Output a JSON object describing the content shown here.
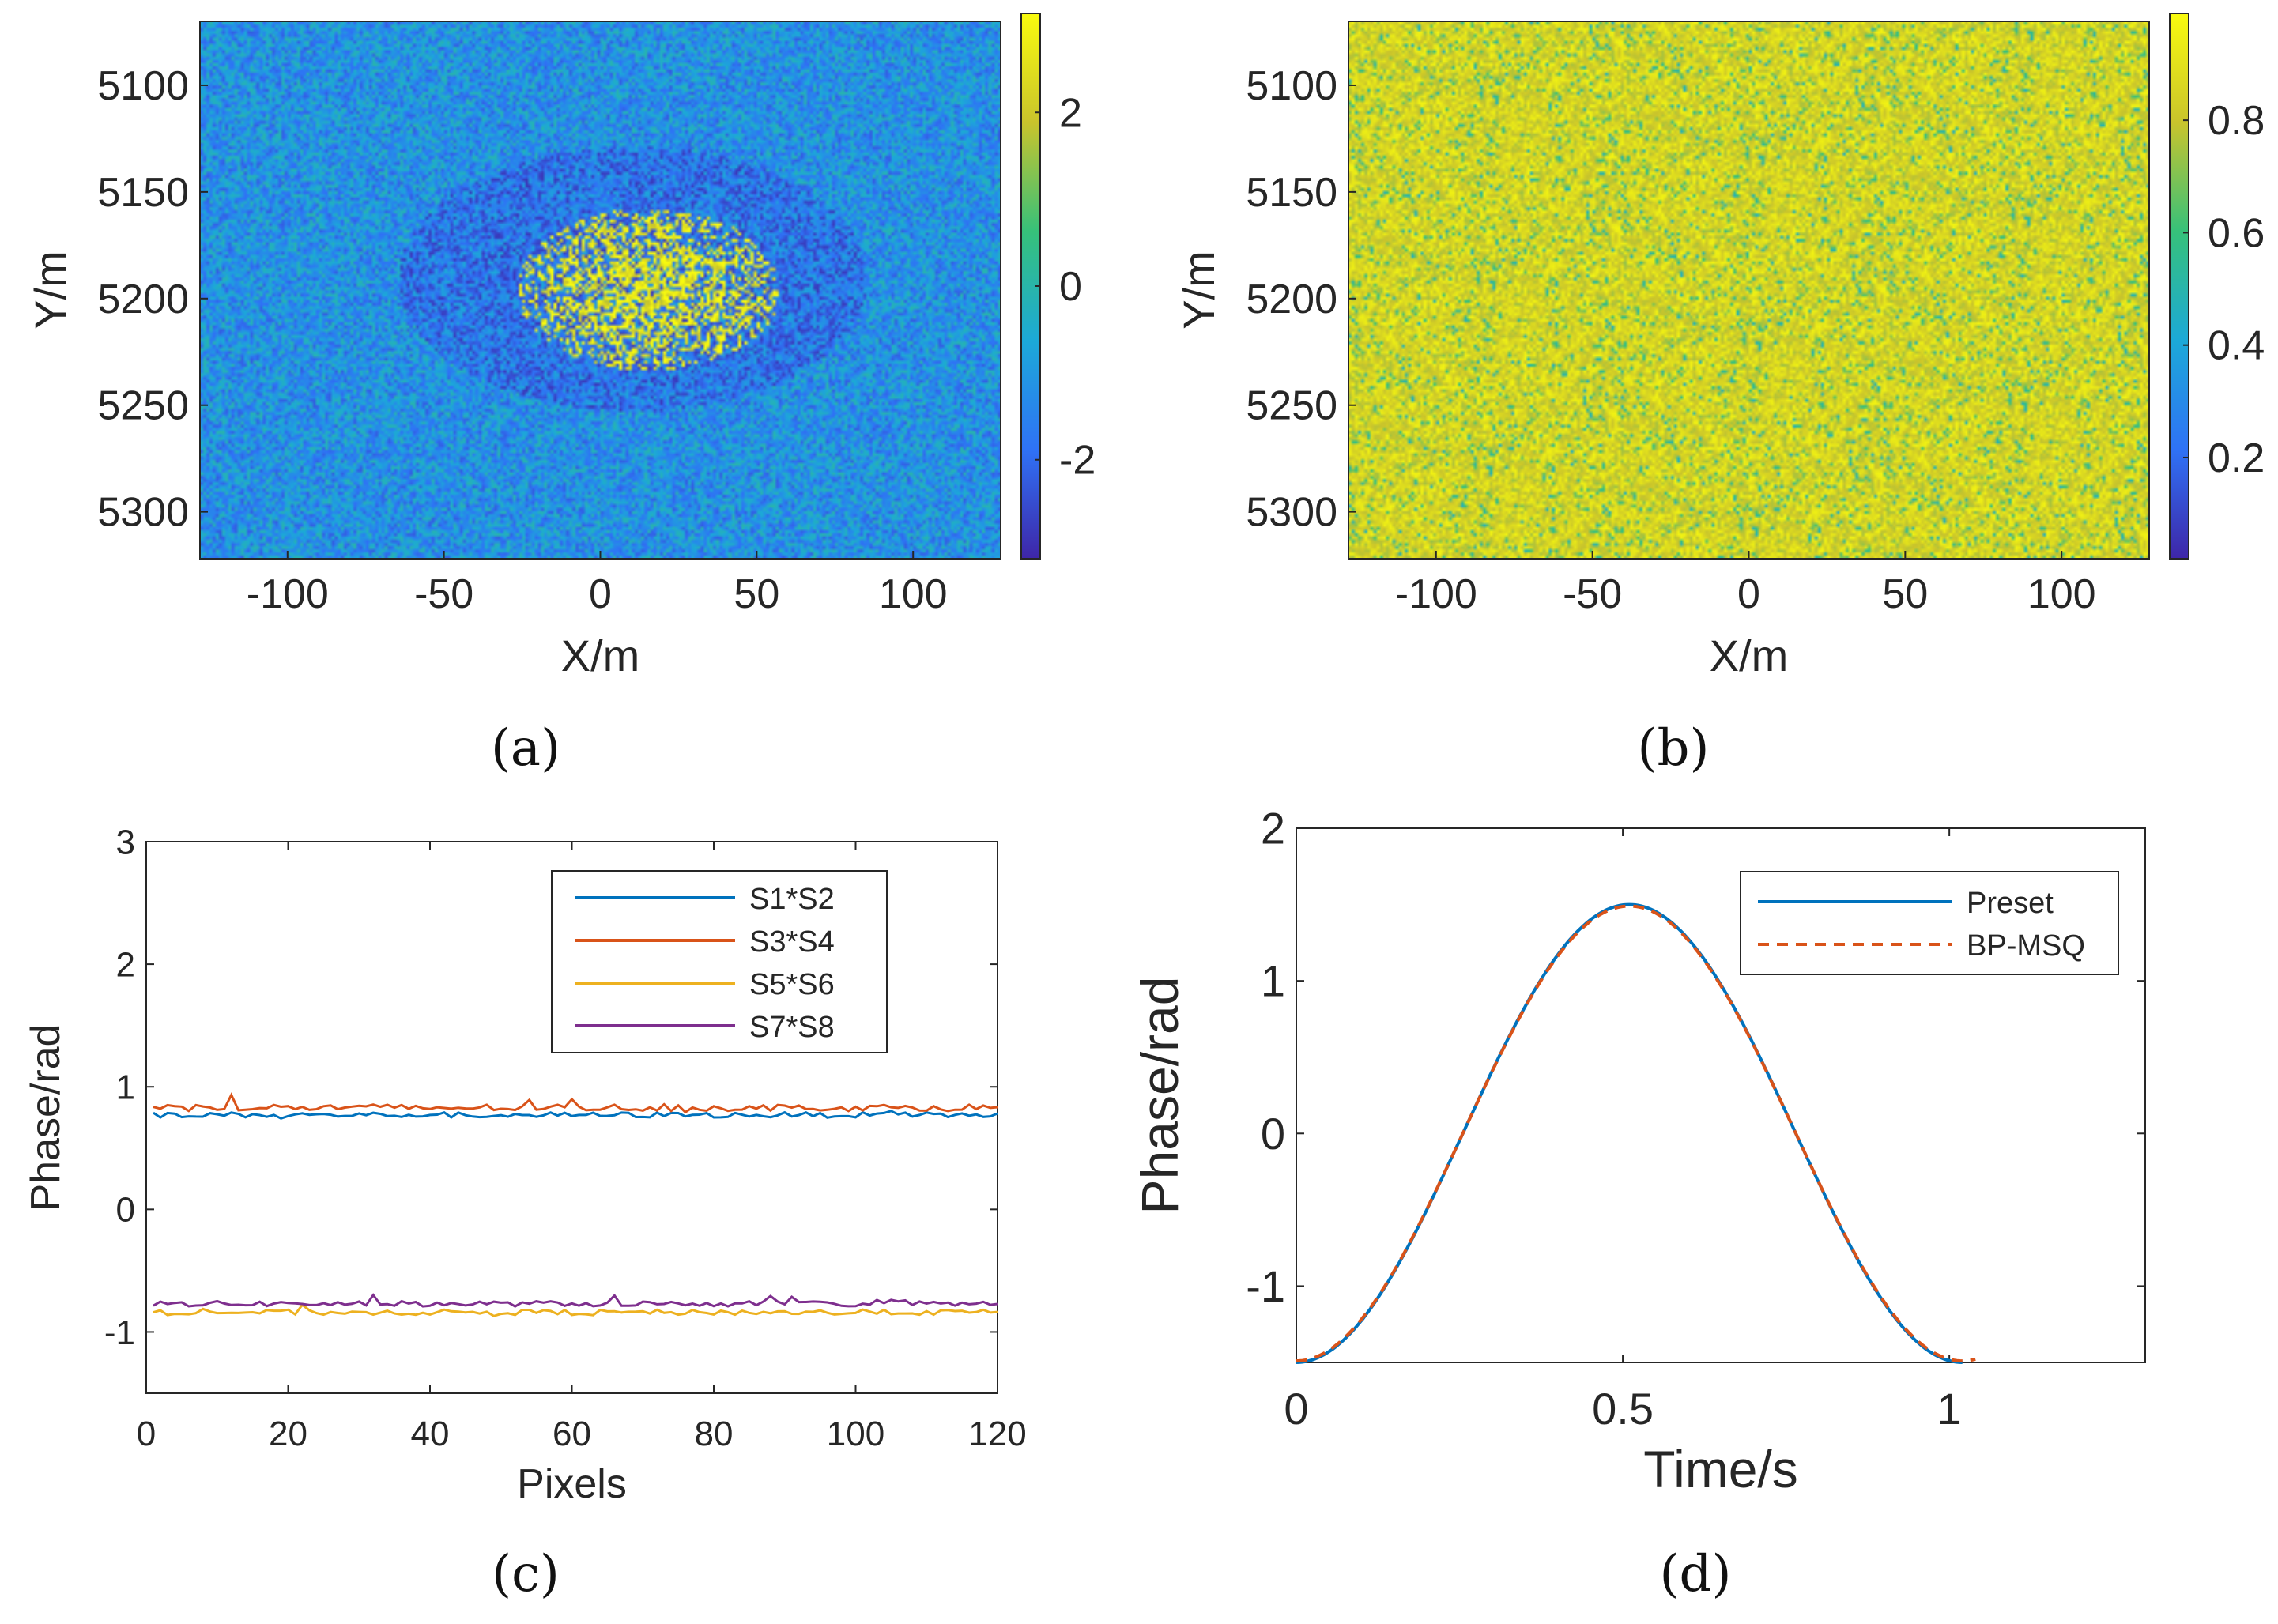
{
  "figure": {
    "captions": [
      "(a)",
      "(b)",
      "(c)",
      "(d)"
    ]
  },
  "chart_data": [
    {
      "id": "a",
      "type": "heatmap",
      "title": "",
      "xlabel": "X/m",
      "ylabel": "Y/m",
      "xlim": [
        -128,
        128
      ],
      "ylim": [
        5070,
        5322
      ],
      "y_reversed": true,
      "xticks": [
        -100,
        -50,
        0,
        50,
        100
      ],
      "yticks": [
        5100,
        5150,
        5200,
        5250,
        5300
      ],
      "colorbar": {
        "ticks": [
          2,
          0,
          -2
        ],
        "range": [
          -3.14,
          3.14
        ],
        "colors": [
          "#3e26a8",
          "#2f72f6",
          "#1ca9d8",
          "#36c17a",
          "#c9c42c",
          "#f9fb0e"
        ]
      },
      "description_values": {
        "background_phase": -1.2,
        "center_phase": 3.0
      }
    },
    {
      "id": "b",
      "type": "heatmap",
      "title": "",
      "xlabel": "X/m",
      "ylabel": "Y/m",
      "xlim": [
        -128,
        128
      ],
      "ylim": [
        5070,
        5322
      ],
      "y_reversed": true,
      "xticks": [
        -100,
        -50,
        0,
        50,
        100
      ],
      "yticks": [
        5100,
        5150,
        5200,
        5250,
        5300
      ],
      "colorbar": {
        "ticks": [
          0.8,
          0.6,
          0.4,
          0.2
        ],
        "range": [
          0.02,
          0.99
        ],
        "colors": [
          "#3e26a8",
          "#2f72f6",
          "#1ca9d8",
          "#36c17a",
          "#c9c42c",
          "#f9fb0e"
        ]
      },
      "description_values": {
        "typical_coherence": 0.9
      }
    },
    {
      "id": "c",
      "type": "line",
      "title": "",
      "xlabel": "Pixels",
      "ylabel": "Phase/rad",
      "xlim": [
        0,
        120
      ],
      "ylim": [
        -1.5,
        3
      ],
      "xticks": [
        0,
        20,
        40,
        60,
        80,
        100,
        120
      ],
      "yticks": [
        3,
        2,
        1,
        0,
        -1
      ],
      "legend": "top-right",
      "series": [
        {
          "name": "S1*S2",
          "color": "#0072bd",
          "mean": 0.77,
          "noise": 0.022
        },
        {
          "name": "S3*S4",
          "color": "#d95319",
          "mean": 0.83,
          "noise": 0.028
        },
        {
          "name": "S5*S6",
          "color": "#edb120",
          "mean": -0.84,
          "noise": 0.022
        },
        {
          "name": "S7*S8",
          "color": "#7e2f8e",
          "mean": -0.77,
          "noise": 0.022
        }
      ]
    },
    {
      "id": "d",
      "type": "line",
      "title": "",
      "xlabel": "Time/s",
      "ylabel": "Phase/rad",
      "xlim": [
        0,
        1.3
      ],
      "ylim": [
        -1.5,
        2
      ],
      "xticks": [
        0,
        0.5,
        1
      ],
      "xtick_labels": [
        "0",
        "0.5",
        "1"
      ],
      "yticks": [
        2,
        1,
        0,
        -1
      ],
      "legend": "top-right",
      "series": [
        {
          "name": "Preset",
          "color": "#0072bd",
          "style": "solid",
          "x_range": [
            0,
            1.02
          ],
          "amplitude": 1.5,
          "period": 1.02
        },
        {
          "name": "BP-MSQ",
          "color": "#d95319",
          "style": "dashed",
          "x_range": [
            0,
            1.04
          ],
          "amplitude": 1.49,
          "period": 1.02
        }
      ]
    }
  ]
}
